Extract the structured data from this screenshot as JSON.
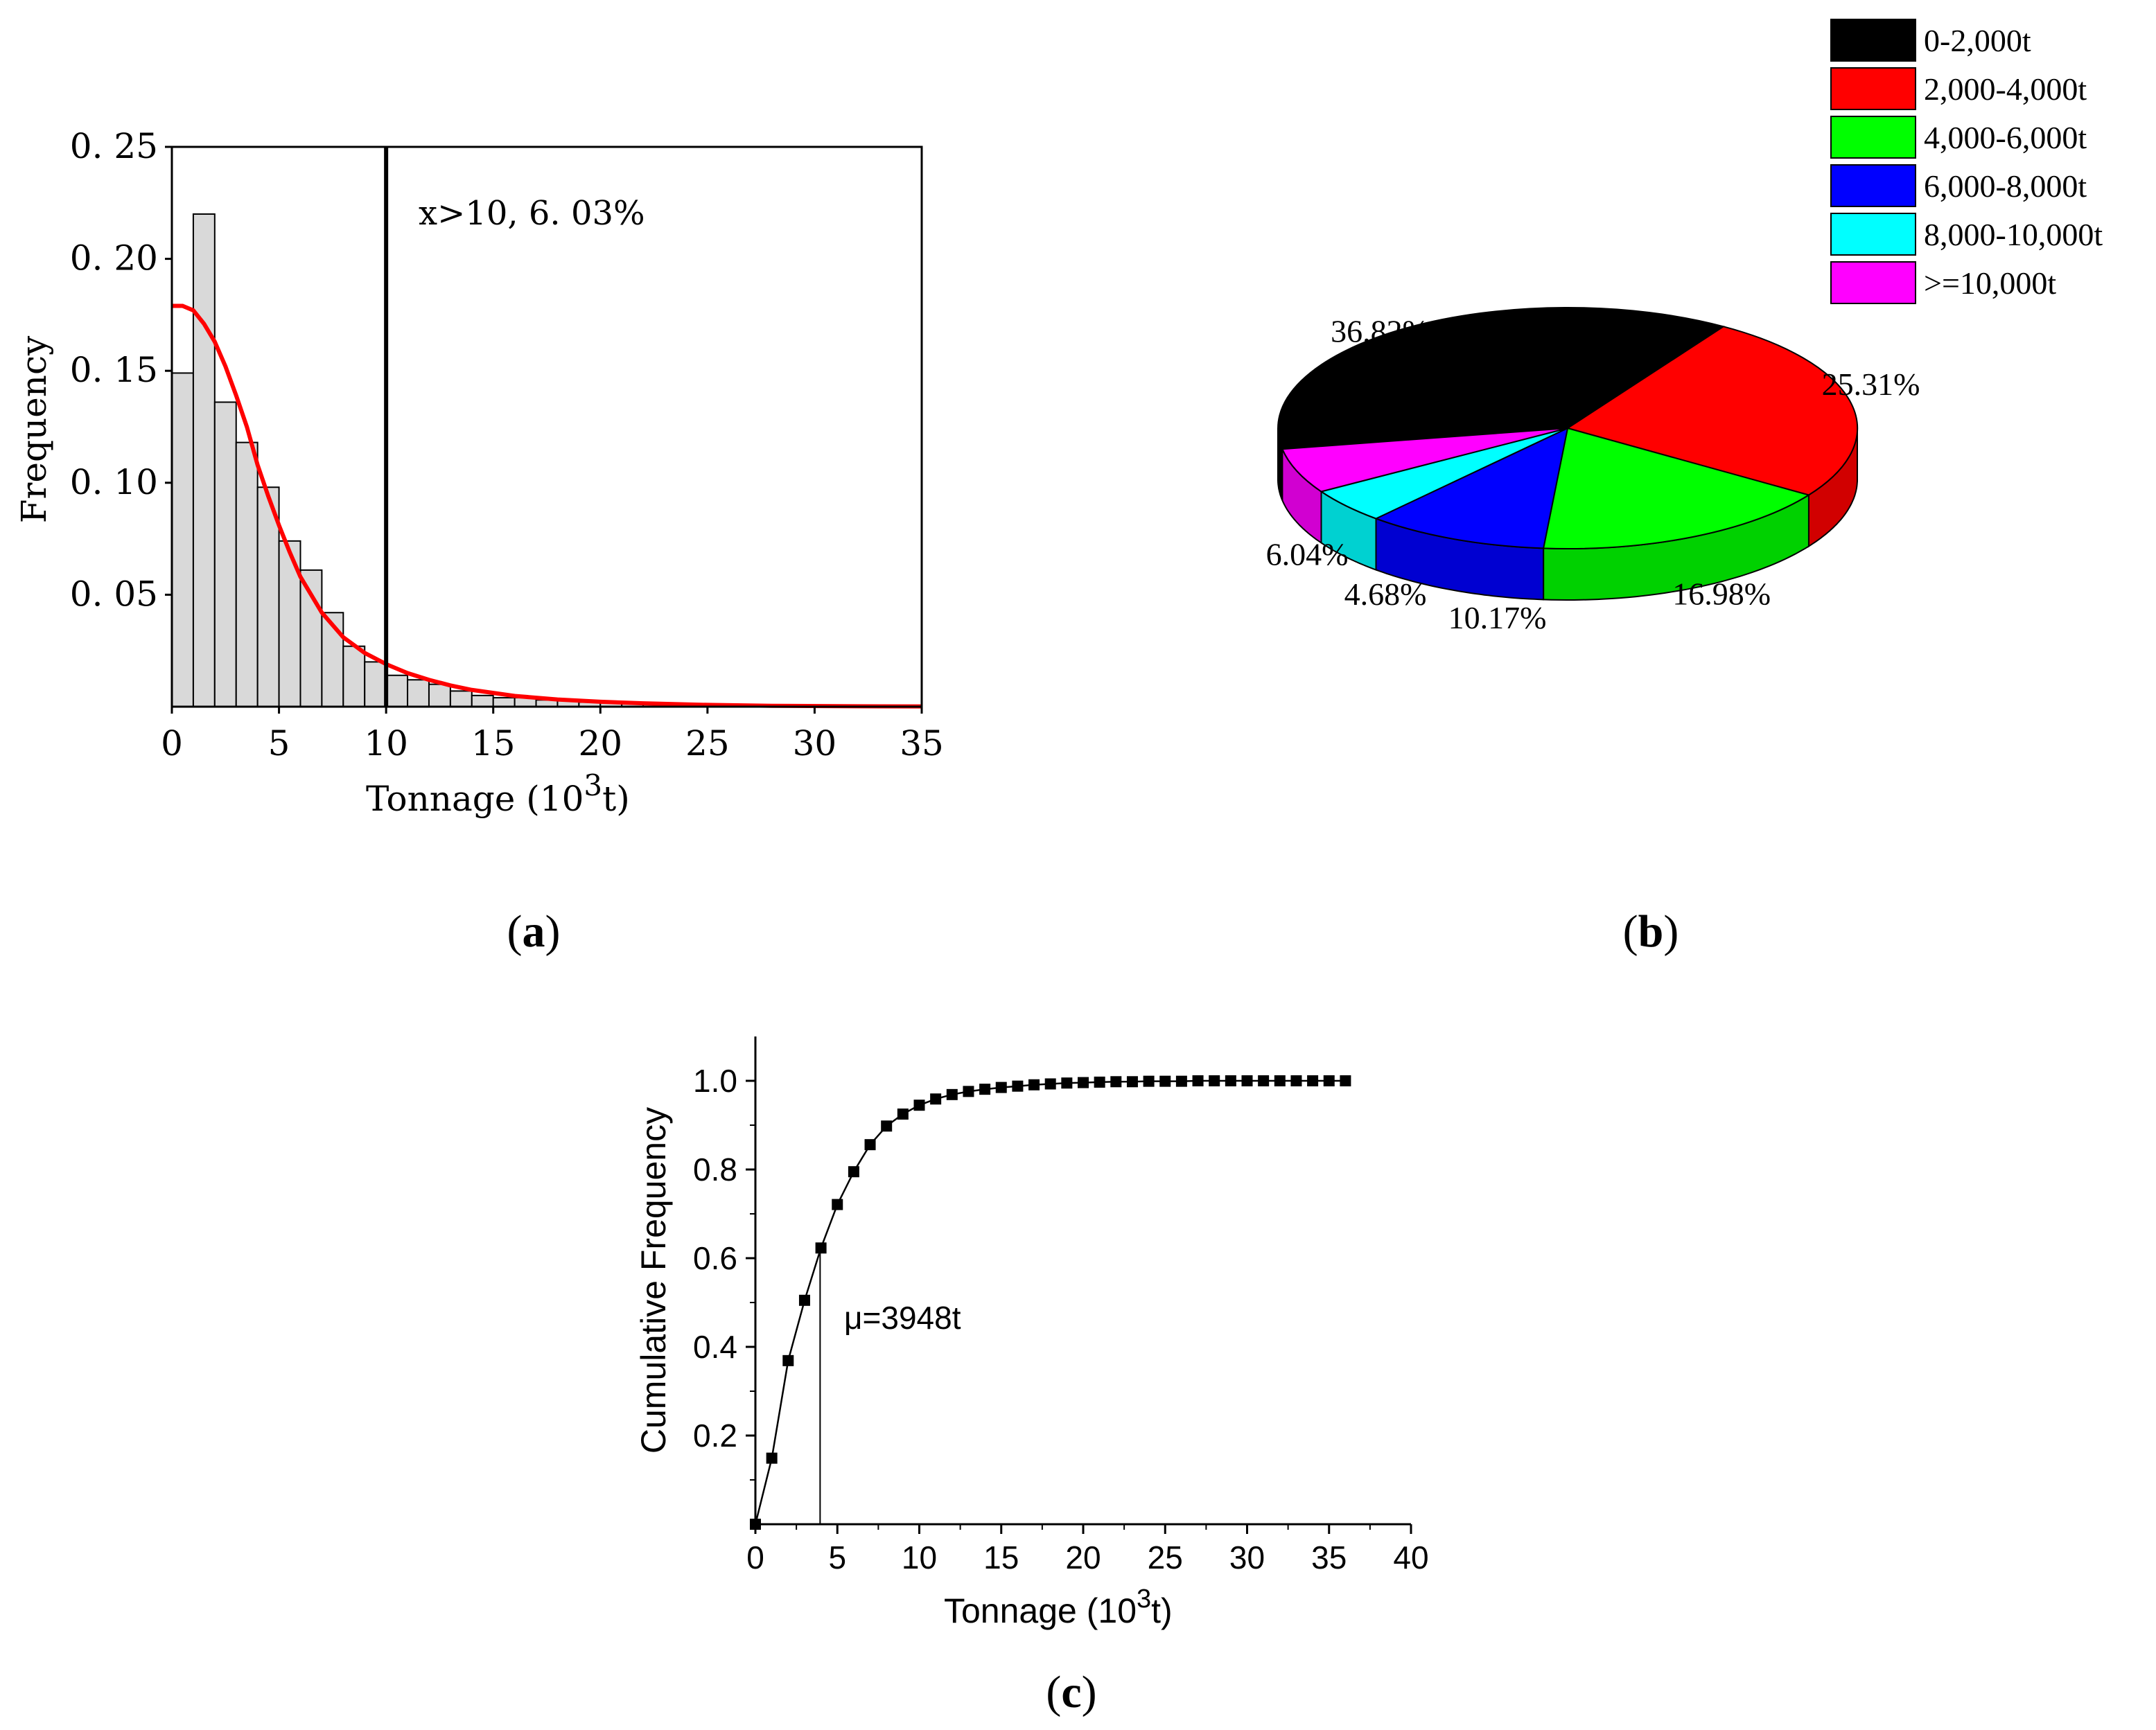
{
  "chart_data": [
    {
      "panel": "(a)",
      "type": "bar",
      "xlabel": "Tonnage (10",
      "xlabel_sup": "3",
      "xlabel_end": "t)",
      "ylabel": "Frequency",
      "xlim": [
        0,
        35
      ],
      "ylim": [
        0,
        0.25
      ],
      "xticks": [
        0,
        5,
        10,
        15,
        20,
        25,
        30,
        35
      ],
      "xtick_labels": [
        "0",
        "5",
        "10",
        "15",
        "20",
        "25",
        "30",
        "35"
      ],
      "yticks": [
        0.05,
        0.1,
        0.15,
        0.2,
        0.25
      ],
      "ytick_labels": [
        "0. 05",
        "0. 10",
        "0. 15",
        "0. 20",
        "0. 25"
      ],
      "bin_width": 1,
      "bins": [
        {
          "x": 0,
          "freq": 0.149
        },
        {
          "x": 1,
          "freq": 0.22
        },
        {
          "x": 2,
          "freq": 0.136
        },
        {
          "x": 3,
          "freq": 0.118
        },
        {
          "x": 4,
          "freq": 0.098
        },
        {
          "x": 5,
          "freq": 0.074
        },
        {
          "x": 6,
          "freq": 0.061
        },
        {
          "x": 7,
          "freq": 0.042
        },
        {
          "x": 8,
          "freq": 0.027
        },
        {
          "x": 9,
          "freq": 0.02
        },
        {
          "x": 10,
          "freq": 0.014
        },
        {
          "x": 11,
          "freq": 0.012
        },
        {
          "x": 12,
          "freq": 0.01
        },
        {
          "x": 13,
          "freq": 0.007
        },
        {
          "x": 14,
          "freq": 0.005
        },
        {
          "x": 15,
          "freq": 0.004
        },
        {
          "x": 16,
          "freq": 0.004
        },
        {
          "x": 17,
          "freq": 0.003
        },
        {
          "x": 18,
          "freq": 0.003
        },
        {
          "x": 19,
          "freq": 0.002
        },
        {
          "x": 20,
          "freq": 0.002
        },
        {
          "x": 21,
          "freq": 0.002
        },
        {
          "x": 22,
          "freq": 0.0015
        },
        {
          "x": 23,
          "freq": 0.001
        },
        {
          "x": 24,
          "freq": 0.001
        },
        {
          "x": 25,
          "freq": 0.001
        },
        {
          "x": 26,
          "freq": 0.0008
        },
        {
          "x": 27,
          "freq": 0.0006
        }
      ],
      "fit_curve": {
        "color": "#ff0000",
        "points": [
          [
            0,
            0.179
          ],
          [
            0.5,
            0.179
          ],
          [
            1,
            0.177
          ],
          [
            1.5,
            0.171
          ],
          [
            2,
            0.163
          ],
          [
            2.5,
            0.152
          ],
          [
            3,
            0.139
          ],
          [
            3.5,
            0.125
          ],
          [
            4,
            0.108
          ],
          [
            4.5,
            0.094
          ],
          [
            5,
            0.081
          ],
          [
            5.5,
            0.069
          ],
          [
            6,
            0.058
          ],
          [
            7,
            0.042
          ],
          [
            8,
            0.031
          ],
          [
            9,
            0.024
          ],
          [
            10,
            0.019
          ],
          [
            11,
            0.015
          ],
          [
            12,
            0.012
          ],
          [
            13,
            0.0095
          ],
          [
            14,
            0.0075
          ],
          [
            16,
            0.0048
          ],
          [
            18,
            0.0032
          ],
          [
            20,
            0.0022
          ],
          [
            22,
            0.0015
          ],
          [
            25,
            0.0008
          ],
          [
            28,
            0.0004
          ],
          [
            32,
            0.0002
          ],
          [
            35,
            0.0001
          ]
        ]
      },
      "vline": {
        "x": 10,
        "color": "#000000"
      },
      "annotation": "x>10, 6. 03%",
      "bar_color": "#d9d9d9",
      "grid": false
    },
    {
      "panel": "(b)",
      "type": "pie",
      "style": "3d",
      "legend_position": "top-right",
      "slices": [
        {
          "label": "0-2,000t",
          "value": 36.82,
          "pct_label": "36.82%",
          "color": "#000000"
        },
        {
          "label": "2,000-4,000t",
          "value": 25.31,
          "pct_label": "25.31%",
          "color": "#ff0000"
        },
        {
          "label": "4,000-6,000t",
          "value": 16.98,
          "pct_label": "16.98%",
          "color": "#00ff00"
        },
        {
          "label": "6,000-8,000t",
          "value": 10.17,
          "pct_label": "10.17%",
          "color": "#0000ff"
        },
        {
          "label": "8,000-10,000t",
          "value": 4.68,
          "pct_label": "4.68%",
          "color": "#00ffff"
        },
        {
          "label": ">=10,000t",
          "value": 6.04,
          "pct_label": "6.04%",
          "color": "#ff00ff"
        }
      ]
    },
    {
      "panel": "(c)",
      "type": "line",
      "markers": "square",
      "xlabel": "Tonnage (10",
      "xlabel_sup": "3",
      "xlabel_end": "t)",
      "ylabel": "Cumulative Frequency",
      "xlim": [
        0,
        40
      ],
      "ylim": [
        0,
        1.1
      ],
      "xticks": [
        0,
        5,
        10,
        15,
        20,
        25,
        30,
        35,
        40
      ],
      "xtick_labels": [
        "0",
        "5",
        "10",
        "15",
        "20",
        "25",
        "30",
        "35",
        "40"
      ],
      "yticks": [
        0.2,
        0.4,
        0.6,
        0.8,
        1.0
      ],
      "ytick_labels": [
        "0.2",
        "0.4",
        "0.6",
        "0.8",
        "1.0"
      ],
      "x": [
        0,
        1,
        2,
        3,
        4,
        5,
        6,
        7,
        8,
        9,
        10,
        11,
        12,
        13,
        14,
        15,
        16,
        17,
        18,
        19,
        20,
        21,
        22,
        23,
        24,
        25,
        26,
        27,
        28,
        29,
        30,
        31,
        32,
        33,
        34,
        35,
        36
      ],
      "y": [
        0.0,
        0.149,
        0.369,
        0.505,
        0.623,
        0.721,
        0.795,
        0.856,
        0.898,
        0.925,
        0.945,
        0.959,
        0.969,
        0.976,
        0.981,
        0.985,
        0.988,
        0.991,
        0.993,
        0.995,
        0.996,
        0.997,
        0.998,
        0.998,
        0.999,
        0.999,
        0.999,
        1.0,
        1.0,
        1.0,
        1.0,
        1.0,
        1.0,
        1.0,
        1.0,
        1.0,
        1.0
      ],
      "mean_line_x": 3.948,
      "annotation": "μ=3948t",
      "grid": false
    }
  ]
}
